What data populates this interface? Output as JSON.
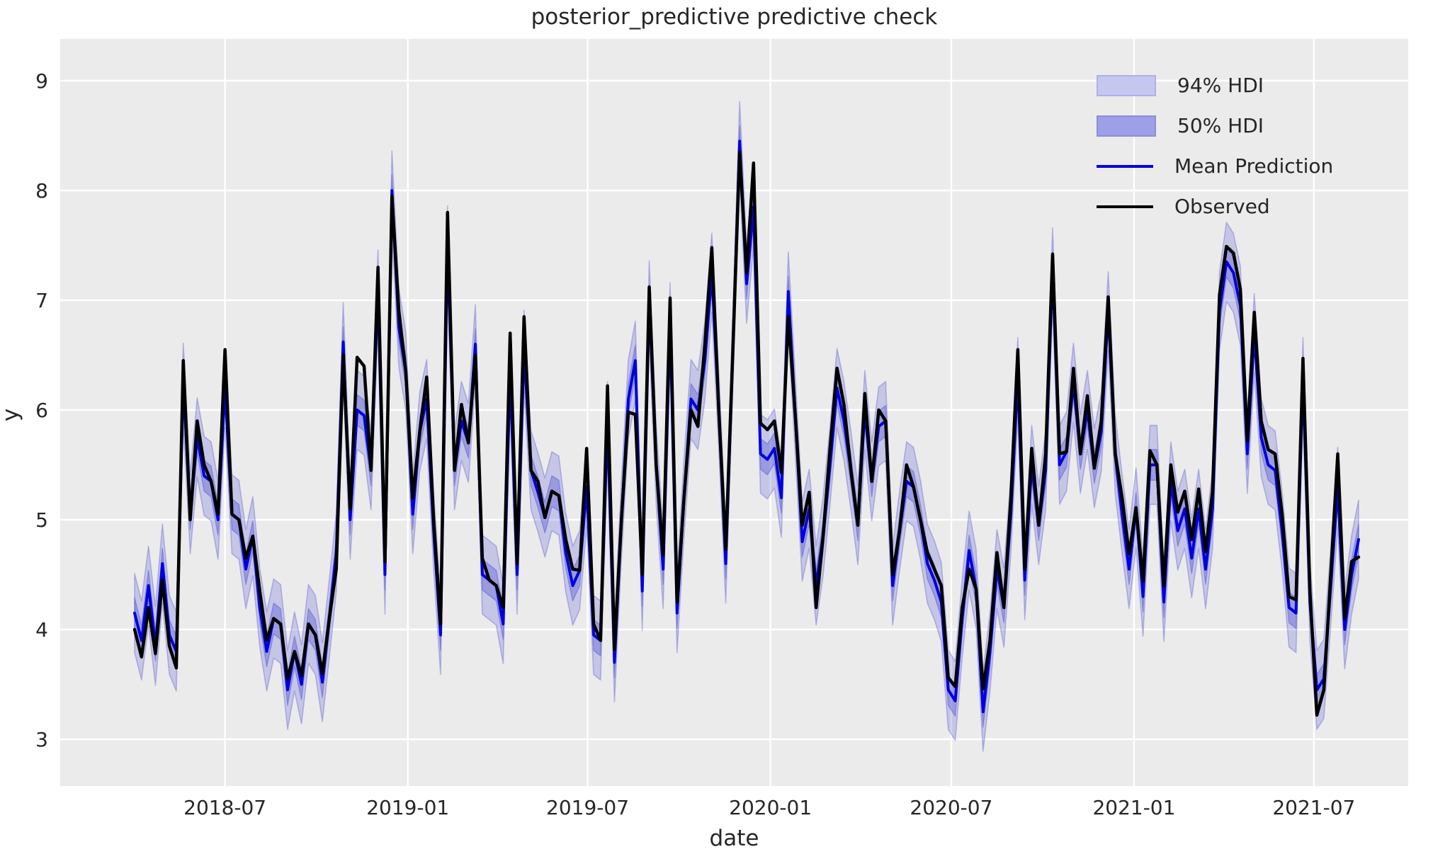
{
  "chart_data": {
    "type": "line",
    "title": "posterior_predictive predictive check",
    "xlabel": "date",
    "ylabel": "y",
    "grid": true,
    "legend_position": "upper right",
    "ylim": [
      2.57,
      9.38
    ],
    "yticks": [
      3,
      4,
      5,
      6,
      7,
      8,
      9
    ],
    "xticks": [
      {
        "label": "2018-07",
        "week": 13.0
      },
      {
        "label": "2019-01",
        "week": 39.29
      },
      {
        "label": "2019-07",
        "week": 65.14
      },
      {
        "label": "2020-01",
        "week": 91.43
      },
      {
        "label": "2020-07",
        "week": 117.43
      },
      {
        "label": "2021-01",
        "week": 143.71
      },
      {
        "label": "2021-07",
        "week": 169.57
      }
    ],
    "x_start_date": "2018-04-01",
    "x_interval_days": 7,
    "n_points": 177,
    "hdi_94_halfwidth": 0.36,
    "hdi_50_halfwidth": 0.14,
    "series": [
      {
        "name": "Mean Prediction",
        "color": "#0000dd",
        "values": [
          4.15,
          3.9,
          4.4,
          3.85,
          4.6,
          3.95,
          3.8,
          6.25,
          5.05,
          5.75,
          5.4,
          5.35,
          5.0,
          6.2,
          5.05,
          5.0,
          4.55,
          4.85,
          4.2,
          3.8,
          4.1,
          4.05,
          3.45,
          3.8,
          3.5,
          4.05,
          3.95,
          3.52,
          4.1,
          4.7,
          6.62,
          5.0,
          6.0,
          5.95,
          5.45,
          7.1,
          4.5,
          8.0,
          6.75,
          6.35,
          5.05,
          5.8,
          6.1,
          4.9,
          3.95,
          7.5,
          5.45,
          5.9,
          5.7,
          6.6,
          4.5,
          4.45,
          4.4,
          4.05,
          6.35,
          4.5,
          6.55,
          5.45,
          5.25,
          5.02,
          5.26,
          5.22,
          4.7,
          4.4,
          4.54,
          5.3,
          3.95,
          3.9,
          5.9,
          3.7,
          5.0,
          6.1,
          6.45,
          4.35,
          7.0,
          5.5,
          4.55,
          6.8,
          4.15,
          5.2,
          6.1,
          6.0,
          6.45,
          7.25,
          6.0,
          4.6,
          6.5,
          8.45,
          7.15,
          7.85,
          5.6,
          5.55,
          5.65,
          5.2,
          7.08,
          5.95,
          4.8,
          5.1,
          4.4,
          4.85,
          5.5,
          6.2,
          5.9,
          5.45,
          4.95,
          6.0,
          5.35,
          5.85,
          5.9,
          4.4,
          4.9,
          5.35,
          5.3,
          5.0,
          4.6,
          4.45,
          4.25,
          3.45,
          3.35,
          4.1,
          4.72,
          4.37,
          3.25,
          3.8,
          4.55,
          4.2,
          5.05,
          6.3,
          4.45,
          5.5,
          4.95,
          5.45,
          7.3,
          5.5,
          5.62,
          6.25,
          5.6,
          6.0,
          5.47,
          5.8,
          6.9,
          5.6,
          5.05,
          4.55,
          5.11,
          4.3,
          5.5,
          5.5,
          4.25,
          5.35,
          4.9,
          5.1,
          4.65,
          5.1,
          4.55,
          5.1,
          6.9,
          7.35,
          7.25,
          6.95,
          5.6,
          6.7,
          5.75,
          5.5,
          5.45,
          4.9,
          4.2,
          4.15,
          6.3,
          4.25,
          3.45,
          3.55,
          4.4,
          5.3,
          4.0,
          4.5,
          4.82
        ]
      },
      {
        "name": "Observed",
        "color": "#000000",
        "values": [
          4.0,
          3.75,
          4.2,
          3.78,
          4.45,
          3.85,
          3.65,
          6.45,
          5.0,
          5.9,
          5.5,
          5.35,
          5.05,
          6.55,
          5.05,
          5.0,
          4.65,
          4.85,
          4.35,
          3.9,
          4.1,
          4.05,
          3.55,
          3.8,
          3.58,
          4.05,
          3.95,
          3.6,
          4.1,
          4.55,
          6.5,
          5.1,
          6.48,
          6.4,
          5.45,
          7.3,
          4.62,
          7.95,
          6.9,
          6.35,
          5.2,
          5.8,
          6.3,
          5.0,
          4.05,
          7.8,
          5.45,
          6.05,
          5.7,
          6.5,
          4.65,
          4.45,
          4.4,
          4.2,
          6.7,
          4.6,
          6.85,
          5.45,
          5.35,
          5.02,
          5.26,
          5.22,
          4.82,
          4.55,
          4.54,
          5.65,
          4.05,
          3.9,
          6.22,
          3.82,
          5.0,
          5.98,
          5.96,
          4.5,
          7.12,
          5.5,
          4.68,
          7.02,
          4.25,
          5.2,
          6.0,
          5.85,
          6.6,
          7.48,
          6.0,
          4.73,
          6.5,
          8.35,
          7.25,
          8.25,
          5.88,
          5.82,
          5.9,
          5.43,
          6.85,
          5.95,
          4.95,
          5.25,
          4.2,
          4.85,
          5.65,
          6.38,
          6.05,
          5.45,
          4.95,
          6.15,
          5.35,
          6.0,
          5.9,
          4.5,
          4.9,
          5.5,
          5.3,
          5.0,
          4.7,
          4.55,
          4.4,
          3.56,
          3.48,
          4.2,
          4.55,
          4.37,
          3.46,
          3.9,
          4.7,
          4.2,
          5.2,
          6.55,
          4.55,
          5.65,
          4.95,
          5.6,
          7.42,
          5.6,
          5.62,
          6.38,
          5.6,
          6.13,
          5.47,
          5.9,
          7.03,
          5.6,
          5.2,
          4.69,
          5.11,
          4.44,
          5.63,
          5.5,
          4.4,
          5.5,
          5.07,
          5.26,
          4.82,
          5.28,
          4.71,
          5.26,
          7.05,
          7.49,
          7.43,
          7.1,
          5.72,
          6.89,
          5.9,
          5.64,
          5.6,
          5.05,
          4.3,
          4.27,
          6.47,
          4.35,
          3.22,
          3.45,
          4.5,
          5.6,
          4.1,
          4.62,
          4.66
        ]
      }
    ],
    "legend": [
      {
        "label": "94% HDI",
        "type": "patch",
        "color": "#c6c7ef"
      },
      {
        "label": "50% HDI",
        "type": "patch",
        "color": "#9da0e6"
      },
      {
        "label": "Mean Prediction",
        "type": "line",
        "color": "#0000dd"
      },
      {
        "label": "Observed",
        "type": "line",
        "color": "#000000"
      }
    ],
    "colors": {
      "background": "#ebebeb",
      "grid": "#ffffff",
      "text": "#262626",
      "mean_line": "#0000dd",
      "observed_line": "#000000",
      "hdi94_fill": "rgba(82,84,212,0.25)",
      "hdi94_edge": "rgba(82,84,212,0.35)",
      "hdi50_fill": "rgba(82,84,212,0.38)",
      "hdi50_edge": "rgba(82,84,212,0.45)"
    }
  }
}
